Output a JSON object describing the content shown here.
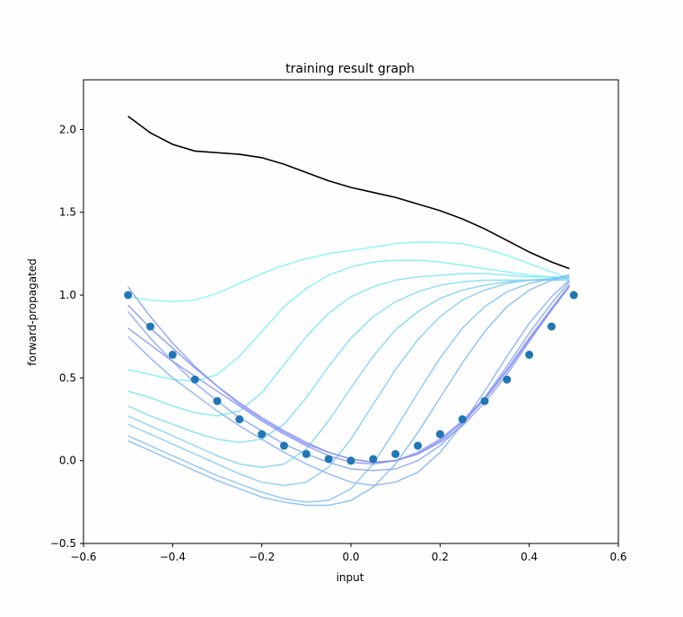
{
  "chart_data": {
    "type": "line",
    "title": "training result graph",
    "xlabel": "input",
    "ylabel": "forward-propagated",
    "xlim": [
      -0.6,
      0.6
    ],
    "ylim": [
      -0.5,
      2.3
    ],
    "xticks": [
      -0.6,
      -0.4,
      -0.2,
      0.0,
      0.2,
      0.4,
      0.6
    ],
    "xtick_labels": [
      "−0.6",
      "−0.4",
      "−0.2",
      "0.0",
      "0.2",
      "0.4",
      "0.6"
    ],
    "yticks": [
      -0.5,
      0.0,
      0.5,
      1.0,
      1.5,
      2.0
    ],
    "ytick_labels": [
      "−0.5",
      "0.0",
      "0.5",
      "1.0",
      "1.5",
      "2.0"
    ],
    "grid": false,
    "target_points": {
      "color": "#1f77b4",
      "x": [
        -0.5,
        -0.45,
        -0.4,
        -0.35,
        -0.3,
        -0.25,
        -0.2,
        -0.15,
        -0.1,
        -0.05,
        0.0,
        0.05,
        0.1,
        0.15,
        0.2,
        0.25,
        0.3,
        0.35,
        0.4,
        0.45,
        0.5
      ],
      "y": [
        1.0,
        0.81,
        0.64,
        0.49,
        0.36,
        0.25,
        0.16,
        0.09,
        0.04,
        0.01,
        0.0,
        0.01,
        0.04,
        0.09,
        0.16,
        0.25,
        0.36,
        0.49,
        0.64,
        0.81,
        1.0
      ]
    },
    "initial_curve": {
      "color": "#000000",
      "x": [
        -0.5,
        -0.45,
        -0.4,
        -0.35,
        -0.3,
        -0.25,
        -0.2,
        -0.15,
        -0.1,
        -0.05,
        0.0,
        0.05,
        0.1,
        0.15,
        0.2,
        0.25,
        0.3,
        0.35,
        0.4,
        0.45,
        0.49
      ],
      "y": [
        2.08,
        1.98,
        1.91,
        1.87,
        1.86,
        1.85,
        1.83,
        1.79,
        1.74,
        1.69,
        1.65,
        1.62,
        1.59,
        1.55,
        1.51,
        1.46,
        1.4,
        1.33,
        1.26,
        1.2,
        1.16
      ]
    },
    "training_curves": {
      "color_start": "#7af7f7",
      "color_end": "#8a8cf5",
      "series": [
        {
          "x": [
            -0.5,
            -0.45,
            -0.4,
            -0.35,
            -0.3,
            -0.25,
            -0.2,
            -0.15,
            -0.1,
            -0.05,
            0.0,
            0.05,
            0.1,
            0.15,
            0.2,
            0.25,
            0.3,
            0.35,
            0.4,
            0.45,
            0.49
          ],
          "y": [
            0.99,
            0.97,
            0.96,
            0.97,
            1.01,
            1.07,
            1.13,
            1.18,
            1.22,
            1.25,
            1.27,
            1.29,
            1.31,
            1.32,
            1.32,
            1.31,
            1.28,
            1.24,
            1.19,
            1.14,
            1.1
          ]
        },
        {
          "x": [
            -0.5,
            -0.45,
            -0.4,
            -0.35,
            -0.3,
            -0.25,
            -0.2,
            -0.15,
            -0.1,
            -0.05,
            0.0,
            0.05,
            0.1,
            0.15,
            0.2,
            0.25,
            0.3,
            0.35,
            0.4,
            0.45,
            0.49
          ],
          "y": [
            0.55,
            0.52,
            0.49,
            0.48,
            0.52,
            0.63,
            0.78,
            0.93,
            1.04,
            1.12,
            1.17,
            1.2,
            1.21,
            1.21,
            1.2,
            1.18,
            1.16,
            1.14,
            1.12,
            1.11,
            1.1
          ]
        },
        {
          "x": [
            -0.5,
            -0.45,
            -0.4,
            -0.35,
            -0.3,
            -0.25,
            -0.2,
            -0.15,
            -0.1,
            -0.05,
            0.0,
            0.05,
            0.1,
            0.15,
            0.2,
            0.25,
            0.3,
            0.35,
            0.4,
            0.45,
            0.49
          ],
          "y": [
            0.42,
            0.38,
            0.33,
            0.29,
            0.27,
            0.3,
            0.41,
            0.58,
            0.75,
            0.89,
            0.99,
            1.05,
            1.09,
            1.11,
            1.12,
            1.13,
            1.13,
            1.12,
            1.11,
            1.11,
            1.1
          ]
        },
        {
          "x": [
            -0.5,
            -0.45,
            -0.4,
            -0.35,
            -0.3,
            -0.25,
            -0.2,
            -0.15,
            -0.1,
            -0.05,
            0.0,
            0.05,
            0.1,
            0.15,
            0.2,
            0.25,
            0.3,
            0.35,
            0.4,
            0.45,
            0.49
          ],
          "y": [
            0.33,
            0.27,
            0.22,
            0.17,
            0.13,
            0.11,
            0.13,
            0.22,
            0.38,
            0.57,
            0.74,
            0.87,
            0.96,
            1.02,
            1.06,
            1.08,
            1.09,
            1.09,
            1.09,
            1.09,
            1.09
          ]
        },
        {
          "x": [
            -0.5,
            -0.45,
            -0.4,
            -0.35,
            -0.3,
            -0.25,
            -0.2,
            -0.15,
            -0.1,
            -0.05,
            0.0,
            0.05,
            0.1,
            0.15,
            0.2,
            0.25,
            0.3,
            0.35,
            0.4,
            0.45,
            0.49
          ],
          "y": [
            0.27,
            0.21,
            0.15,
            0.09,
            0.03,
            -0.02,
            -0.04,
            -0.02,
            0.07,
            0.24,
            0.44,
            0.63,
            0.79,
            0.9,
            0.98,
            1.03,
            1.06,
            1.08,
            1.09,
            1.09,
            1.1
          ]
        },
        {
          "x": [
            -0.5,
            -0.45,
            -0.4,
            -0.35,
            -0.3,
            -0.25,
            -0.2,
            -0.15,
            -0.1,
            -0.05,
            0.0,
            0.05,
            0.1,
            0.15,
            0.2,
            0.25,
            0.3,
            0.35,
            0.4,
            0.45,
            0.49
          ],
          "y": [
            0.22,
            0.16,
            0.1,
            0.04,
            -0.02,
            -0.08,
            -0.13,
            -0.15,
            -0.13,
            -0.04,
            0.13,
            0.34,
            0.55,
            0.73,
            0.87,
            0.97,
            1.03,
            1.07,
            1.09,
            1.1,
            1.11
          ]
        },
        {
          "x": [
            -0.5,
            -0.45,
            -0.4,
            -0.35,
            -0.3,
            -0.25,
            -0.2,
            -0.15,
            -0.1,
            -0.05,
            0.0,
            0.05,
            0.1,
            0.15,
            0.2,
            0.25,
            0.3,
            0.35,
            0.4,
            0.45,
            0.49
          ],
          "y": [
            0.15,
            0.09,
            0.03,
            -0.03,
            -0.09,
            -0.14,
            -0.19,
            -0.23,
            -0.25,
            -0.24,
            -0.17,
            -0.02,
            0.19,
            0.41,
            0.62,
            0.8,
            0.93,
            1.02,
            1.07,
            1.1,
            1.12
          ]
        },
        {
          "x": [
            -0.5,
            -0.45,
            -0.4,
            -0.35,
            -0.3,
            -0.25,
            -0.2,
            -0.15,
            -0.1,
            -0.05,
            0.0,
            0.05,
            0.1,
            0.15,
            0.2,
            0.25,
            0.3,
            0.35,
            0.4,
            0.45,
            0.49
          ],
          "y": [
            0.12,
            0.06,
            0.0,
            -0.06,
            -0.12,
            -0.17,
            -0.22,
            -0.25,
            -0.27,
            -0.27,
            -0.24,
            -0.16,
            -0.02,
            0.17,
            0.38,
            0.59,
            0.78,
            0.93,
            1.03,
            1.09,
            1.12
          ]
        },
        {
          "x": [
            -0.5,
            -0.45,
            -0.4,
            -0.35,
            -0.3,
            -0.25,
            -0.2,
            -0.15,
            -0.1,
            -0.05,
            0.0,
            0.05,
            0.1,
            0.15,
            0.2,
            0.25,
            0.3,
            0.35,
            0.4,
            0.45,
            0.49
          ],
          "y": [
            0.75,
            0.62,
            0.5,
            0.4,
            0.3,
            0.21,
            0.13,
            0.05,
            -0.02,
            -0.08,
            -0.13,
            -0.15,
            -0.13,
            -0.07,
            0.05,
            0.22,
            0.42,
            0.63,
            0.83,
            0.99,
            1.09
          ]
        },
        {
          "x": [
            -0.5,
            -0.45,
            -0.4,
            -0.35,
            -0.3,
            -0.25,
            -0.2,
            -0.15,
            -0.1,
            -0.05,
            0.0,
            0.05,
            0.1,
            0.15,
            0.2,
            0.25,
            0.3,
            0.35,
            0.4,
            0.45,
            0.49
          ],
          "y": [
            0.9,
            0.74,
            0.6,
            0.47,
            0.36,
            0.26,
            0.18,
            0.1,
            0.04,
            -0.01,
            -0.05,
            -0.06,
            -0.05,
            0.0,
            0.09,
            0.22,
            0.38,
            0.57,
            0.77,
            0.95,
            1.08
          ]
        },
        {
          "x": [
            -0.5,
            -0.45,
            -0.4,
            -0.35,
            -0.3,
            -0.25,
            -0.2,
            -0.15,
            -0.1,
            -0.05,
            0.0,
            0.05,
            0.1,
            0.15,
            0.2,
            0.25,
            0.3,
            0.35,
            0.4,
            0.45,
            0.49
          ],
          "y": [
            1.05,
            0.87,
            0.71,
            0.57,
            0.45,
            0.34,
            0.25,
            0.17,
            0.1,
            0.05,
            0.01,
            -0.01,
            0.0,
            0.04,
            0.11,
            0.21,
            0.35,
            0.52,
            0.72,
            0.91,
            1.06
          ]
        },
        {
          "x": [
            -0.5,
            -0.45,
            -0.4,
            -0.35,
            -0.3,
            -0.25,
            -0.2,
            -0.15,
            -0.1,
            -0.05,
            0.0,
            0.05,
            0.1,
            0.15,
            0.2,
            0.25,
            0.3,
            0.35,
            0.4,
            0.45,
            0.49
          ],
          "y": [
            0.8,
            0.7,
            0.6,
            0.51,
            0.42,
            0.33,
            0.24,
            0.16,
            0.09,
            0.03,
            -0.01,
            -0.02,
            0.0,
            0.05,
            0.13,
            0.24,
            0.38,
            0.55,
            0.74,
            0.92,
            1.06
          ]
        },
        {
          "x": [
            -0.5,
            -0.45,
            -0.4,
            -0.35,
            -0.3,
            -0.25,
            -0.2,
            -0.15,
            -0.1,
            -0.05,
            0.0,
            0.05,
            0.1,
            0.15,
            0.2,
            0.25,
            0.3,
            0.35,
            0.4,
            0.45,
            0.49
          ],
          "y": [
            0.94,
            0.8,
            0.68,
            0.56,
            0.45,
            0.35,
            0.26,
            0.18,
            0.11,
            0.05,
            0.01,
            -0.01,
            0.0,
            0.04,
            0.12,
            0.23,
            0.37,
            0.54,
            0.73,
            0.91,
            1.05
          ]
        }
      ]
    }
  }
}
